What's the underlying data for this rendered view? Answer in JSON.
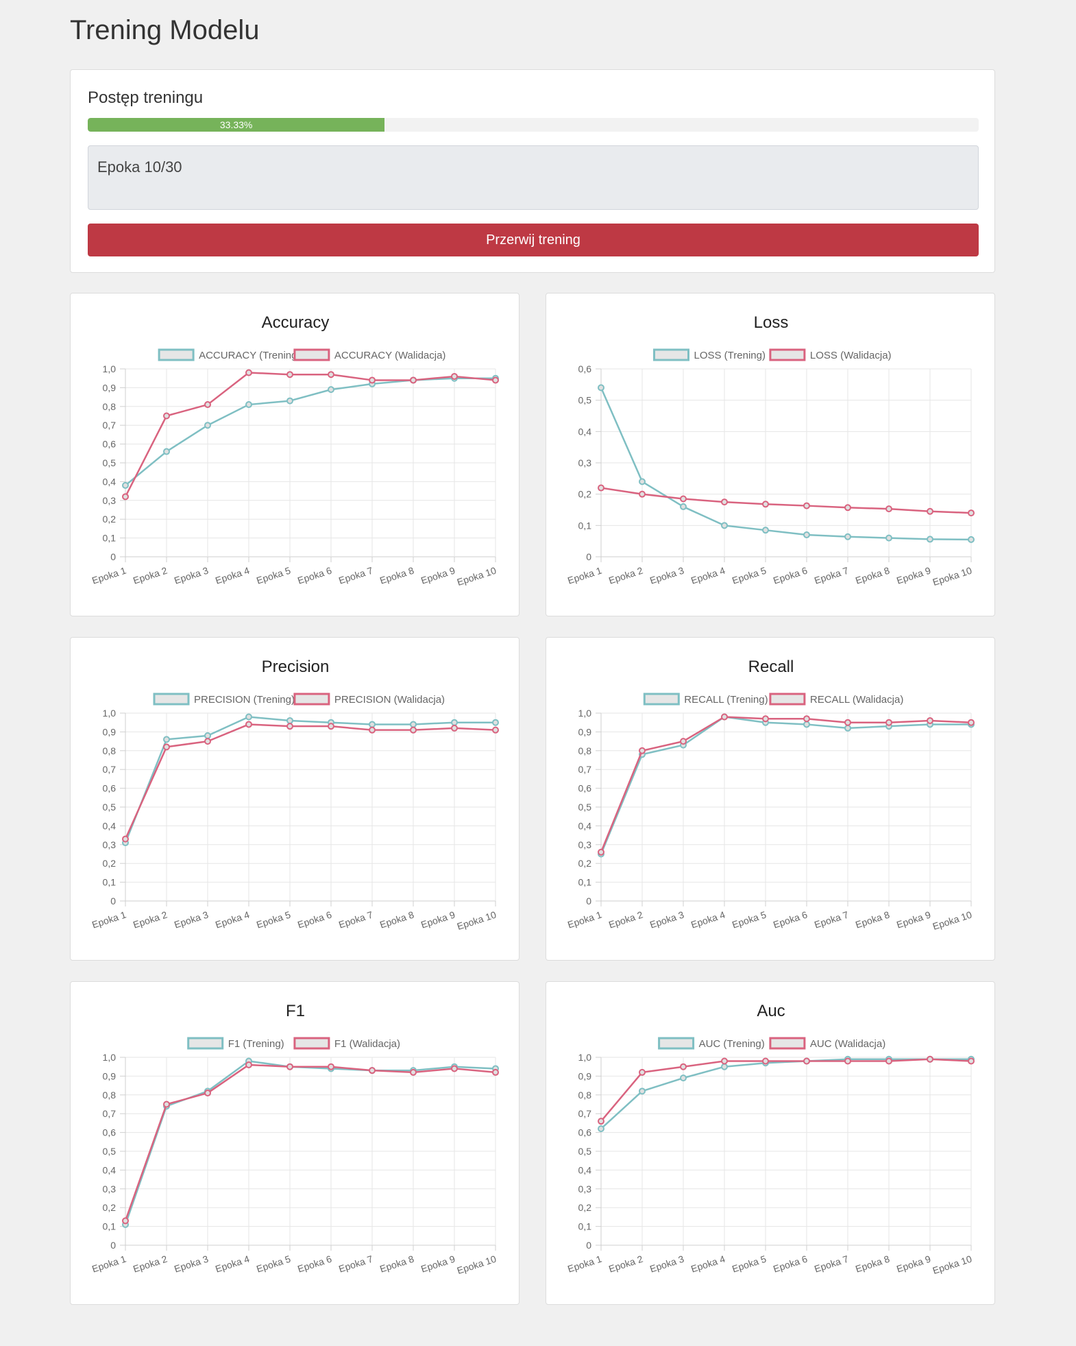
{
  "page": {
    "title": "Trening Modelu"
  },
  "progress": {
    "title": "Postęp treningu",
    "value": 0.3333,
    "label": "33.33%",
    "epoch_text": "Epoka 10/30",
    "stop_label": "Przerwij trening"
  },
  "colors": {
    "train": "#7fbfc3",
    "val": "#d9637f",
    "progress": "#76b35a",
    "stop": "#be3944"
  },
  "chart_data": [
    {
      "type": "line",
      "title": "Accuracy",
      "categories": [
        "Epoka 1",
        "Epoka 2",
        "Epoka 3",
        "Epoka 4",
        "Epoka 5",
        "Epoka 6",
        "Epoka 7",
        "Epoka 8",
        "Epoka 9",
        "Epoka 10"
      ],
      "ylim": [
        0,
        1.0
      ],
      "yticks": [
        "0",
        "0,1",
        "0,2",
        "0,3",
        "0,4",
        "0,5",
        "0,6",
        "0,7",
        "0,8",
        "0,9",
        "1,0"
      ],
      "legend": "top",
      "grid": true,
      "series": [
        {
          "name": "ACCURACY (Trening)",
          "values": [
            0.38,
            0.56,
            0.7,
            0.81,
            0.83,
            0.89,
            0.92,
            0.94,
            0.95,
            0.95
          ]
        },
        {
          "name": "ACCURACY (Walidacja)",
          "values": [
            0.32,
            0.75,
            0.81,
            0.98,
            0.97,
            0.97,
            0.94,
            0.94,
            0.96,
            0.94
          ]
        }
      ]
    },
    {
      "type": "line",
      "title": "Loss",
      "categories": [
        "Epoka 1",
        "Epoka 2",
        "Epoka 3",
        "Epoka 4",
        "Epoka 5",
        "Epoka 6",
        "Epoka 7",
        "Epoka 8",
        "Epoka 9",
        "Epoka 10"
      ],
      "ylim": [
        0,
        0.6
      ],
      "yticks": [
        "0",
        "0,1",
        "0,2",
        "0,3",
        "0,4",
        "0,5",
        "0,6"
      ],
      "legend": "top",
      "grid": true,
      "series": [
        {
          "name": "LOSS (Trening)",
          "values": [
            0.54,
            0.24,
            0.16,
            0.1,
            0.085,
            0.07,
            0.064,
            0.06,
            0.056,
            0.055
          ]
        },
        {
          "name": "LOSS (Walidacja)",
          "values": [
            0.22,
            0.2,
            0.185,
            0.175,
            0.168,
            0.163,
            0.157,
            0.153,
            0.145,
            0.14
          ]
        }
      ]
    },
    {
      "type": "line",
      "title": "Precision",
      "categories": [
        "Epoka 1",
        "Epoka 2",
        "Epoka 3",
        "Epoka 4",
        "Epoka 5",
        "Epoka 6",
        "Epoka 7",
        "Epoka 8",
        "Epoka 9",
        "Epoka 10"
      ],
      "ylim": [
        0,
        1.0
      ],
      "yticks": [
        "0",
        "0,1",
        "0,2",
        "0,3",
        "0,4",
        "0,5",
        "0,6",
        "0,7",
        "0,8",
        "0,9",
        "1,0"
      ],
      "legend": "top",
      "grid": true,
      "series": [
        {
          "name": "PRECISION (Trening)",
          "values": [
            0.31,
            0.86,
            0.88,
            0.98,
            0.96,
            0.95,
            0.94,
            0.94,
            0.95,
            0.95
          ]
        },
        {
          "name": "PRECISION (Walidacja)",
          "values": [
            0.33,
            0.82,
            0.85,
            0.94,
            0.93,
            0.93,
            0.91,
            0.91,
            0.92,
            0.91
          ]
        }
      ]
    },
    {
      "type": "line",
      "title": "Recall",
      "categories": [
        "Epoka 1",
        "Epoka 2",
        "Epoka 3",
        "Epoka 4",
        "Epoka 5",
        "Epoka 6",
        "Epoka 7",
        "Epoka 8",
        "Epoka 9",
        "Epoka 10"
      ],
      "ylim": [
        0,
        1.0
      ],
      "yticks": [
        "0",
        "0,1",
        "0,2",
        "0,3",
        "0,4",
        "0,5",
        "0,6",
        "0,7",
        "0,8",
        "0,9",
        "1,0"
      ],
      "legend": "top",
      "grid": true,
      "series": [
        {
          "name": "RECALL (Trening)",
          "values": [
            0.25,
            0.78,
            0.83,
            0.98,
            0.95,
            0.94,
            0.92,
            0.93,
            0.94,
            0.94
          ]
        },
        {
          "name": "RECALL (Walidacja)",
          "values": [
            0.26,
            0.8,
            0.85,
            0.98,
            0.97,
            0.97,
            0.95,
            0.95,
            0.96,
            0.95
          ]
        }
      ]
    },
    {
      "type": "line",
      "title": "F1",
      "categories": [
        "Epoka 1",
        "Epoka 2",
        "Epoka 3",
        "Epoka 4",
        "Epoka 5",
        "Epoka 6",
        "Epoka 7",
        "Epoka 8",
        "Epoka 9",
        "Epoka 10"
      ],
      "ylim": [
        0,
        1.0
      ],
      "yticks": [
        "0",
        "0,1",
        "0,2",
        "0,3",
        "0,4",
        "0,5",
        "0,6",
        "0,7",
        "0,8",
        "0,9",
        "1,0"
      ],
      "legend": "top",
      "grid": true,
      "series": [
        {
          "name": "F1 (Trening)",
          "values": [
            0.11,
            0.74,
            0.82,
            0.98,
            0.95,
            0.94,
            0.93,
            0.93,
            0.95,
            0.94
          ]
        },
        {
          "name": "F1 (Walidacja)",
          "values": [
            0.13,
            0.75,
            0.81,
            0.96,
            0.95,
            0.95,
            0.93,
            0.92,
            0.94,
            0.92
          ]
        }
      ]
    },
    {
      "type": "line",
      "title": "Auc",
      "categories": [
        "Epoka 1",
        "Epoka 2",
        "Epoka 3",
        "Epoka 4",
        "Epoka 5",
        "Epoka 6",
        "Epoka 7",
        "Epoka 8",
        "Epoka 9",
        "Epoka 10"
      ],
      "ylim": [
        0,
        1.0
      ],
      "yticks": [
        "0",
        "0,1",
        "0,2",
        "0,3",
        "0,4",
        "0,5",
        "0,6",
        "0,7",
        "0,8",
        "0,9",
        "1,0"
      ],
      "legend": "top",
      "grid": true,
      "series": [
        {
          "name": "AUC (Trening)",
          "values": [
            0.62,
            0.82,
            0.89,
            0.95,
            0.97,
            0.98,
            0.99,
            0.99,
            0.99,
            0.99
          ]
        },
        {
          "name": "AUC (Walidacja)",
          "values": [
            0.66,
            0.92,
            0.95,
            0.98,
            0.98,
            0.98,
            0.98,
            0.98,
            0.99,
            0.98
          ]
        }
      ]
    }
  ]
}
